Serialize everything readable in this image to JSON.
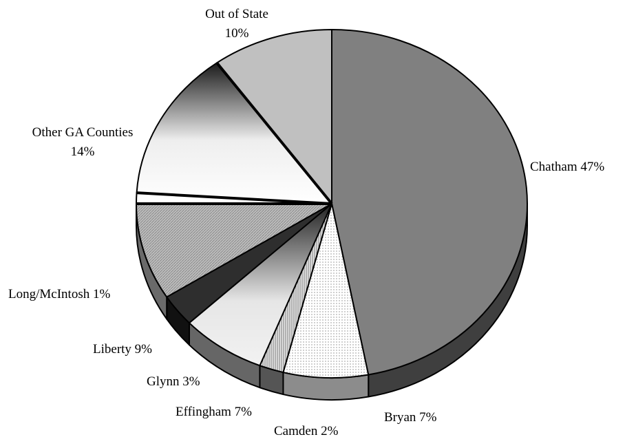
{
  "chart_data": {
    "type": "pie",
    "title": "",
    "slices": [
      {
        "label": "Chatham",
        "display": "Chatham 47%",
        "value": 47,
        "color": "#808080"
      },
      {
        "label": "Bryan",
        "display": "Bryan 7%",
        "value": 7,
        "color": "#f4f4f4"
      },
      {
        "label": "Camden",
        "display": "Camden 2%",
        "value": 2,
        "color": "#c8c8c8"
      },
      {
        "label": "Effingham",
        "display": "Effingham 7%",
        "value": 7,
        "color": "#e6e6e6"
      },
      {
        "label": "Glynn",
        "display": "Glynn 3%",
        "value": 3,
        "color": "#333333"
      },
      {
        "label": "Liberty",
        "display": "Liberty 9%",
        "value": 9,
        "color": "#aaaaaa"
      },
      {
        "label": "Long/McIntosh",
        "display": "Long/McIntosh 1%",
        "value": 1,
        "color": "#ffffff"
      },
      {
        "label": "Other GA Counties",
        "display": [
          "Other GA Counties",
          "14%"
        ],
        "value": 14,
        "color": "#d9d9d9"
      },
      {
        "label": "Out of State",
        "display": [
          "Out of State",
          "10%"
        ],
        "value": 10,
        "color": "#c0c0c0"
      }
    ]
  }
}
